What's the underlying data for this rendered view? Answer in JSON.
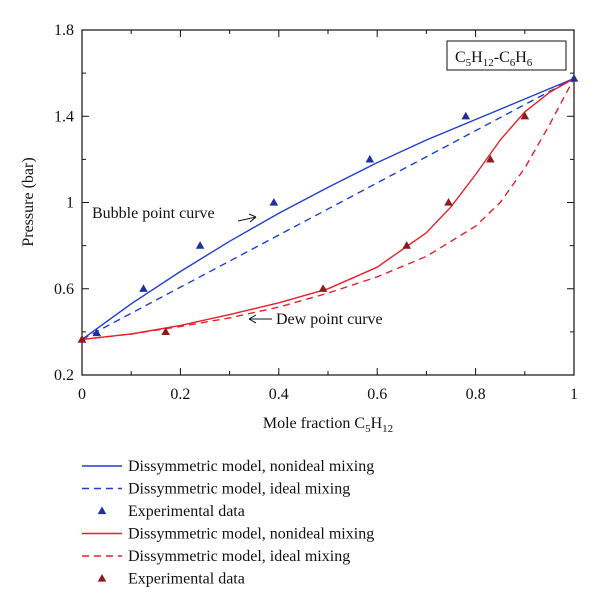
{
  "chart_data": {
    "type": "line",
    "xlabel": "Mole fraction C5H12",
    "ylabel": "Pressure (bar)",
    "xlim": [
      0,
      1
    ],
    "ylim": [
      0.2,
      1.8
    ],
    "xticks": [
      "0",
      "0.2",
      "0.4",
      "0.6",
      "0.8",
      "1"
    ],
    "yticks": [
      "0.2",
      "0.6",
      "1",
      "1.4",
      "1.8"
    ],
    "system_label": "C5H12-C6H6",
    "grid": false,
    "annotations": {
      "bubble": {
        "text": "Bubble point curve",
        "target": [
          0.41,
          0.96
        ]
      },
      "dew": {
        "text": "Dew point curve",
        "target": [
          0.38,
          0.49
        ]
      }
    },
    "colors": {
      "blue": "#1f3fcf",
      "red": "#e8202a"
    },
    "series": [
      {
        "name": "Dissymmetric model, nonideal mixing",
        "color": "#1f3fcf",
        "style": "solid",
        "x": [
          0,
          0.1,
          0.2,
          0.3,
          0.4,
          0.5,
          0.6,
          0.7,
          0.8,
          0.9,
          1.0
        ],
        "y": [
          0.365,
          0.53,
          0.68,
          0.82,
          0.95,
          1.07,
          1.185,
          1.29,
          1.385,
          1.48,
          1.575
        ]
      },
      {
        "name": "Dissymmetric model, ideal mixing",
        "color": "#1f3fcf",
        "style": "dashed",
        "x": [
          0,
          1.0
        ],
        "y": [
          0.365,
          1.575
        ]
      },
      {
        "name": "Experimental data",
        "color": "#1f2fa0",
        "style": "marker",
        "x": [
          0,
          0.03,
          0.125,
          0.24,
          0.39,
          0.585,
          0.78,
          1.0
        ],
        "y": [
          0.365,
          0.395,
          0.6,
          0.8,
          1.0,
          1.2,
          1.4,
          1.575
        ]
      },
      {
        "name": "Dissymmetric model, nonideal mixing",
        "color": "#e8202a",
        "style": "solid",
        "x": [
          0,
          0.1,
          0.2,
          0.3,
          0.4,
          0.5,
          0.6,
          0.7,
          0.75,
          0.8,
          0.85,
          0.9,
          0.95,
          1.0
        ],
        "y": [
          0.365,
          0.39,
          0.43,
          0.48,
          0.535,
          0.6,
          0.7,
          0.86,
          0.98,
          1.13,
          1.29,
          1.42,
          1.51,
          1.575
        ]
      },
      {
        "name": "Dissymmetric model, ideal mixing",
        "color": "#e8202a",
        "style": "dashed",
        "x": [
          0,
          0.1,
          0.2,
          0.3,
          0.4,
          0.5,
          0.6,
          0.7,
          0.8,
          0.85,
          0.9,
          0.95,
          1.0
        ],
        "y": [
          0.365,
          0.39,
          0.425,
          0.465,
          0.515,
          0.58,
          0.655,
          0.75,
          0.89,
          1.0,
          1.16,
          1.36,
          1.575
        ]
      },
      {
        "name": "Experimental data",
        "color": "#8c1c1c",
        "style": "marker",
        "x": [
          0,
          0.17,
          0.49,
          0.66,
          0.745,
          0.83,
          0.9
        ],
        "y": [
          0.365,
          0.4,
          0.6,
          0.8,
          1.0,
          1.2,
          1.4
        ]
      }
    ]
  }
}
